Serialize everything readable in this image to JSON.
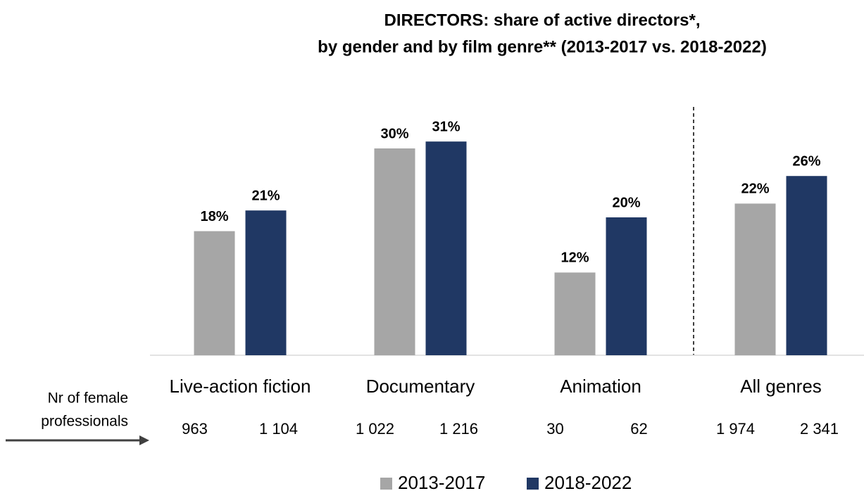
{
  "chart_data": {
    "type": "bar",
    "title": "DIRECTORS: share of active directors*,",
    "subtitle": "by gender and by film genre** (2013-2017 vs. 2018-2022)",
    "categories": [
      "Live-action fiction",
      "Documentary",
      "Animation",
      "All genres"
    ],
    "series": [
      {
        "name": "2013-2017",
        "color": "#a6a6a6",
        "values": [
          18,
          30,
          12,
          22
        ],
        "value_labels": [
          "18%",
          "30%",
          "12%",
          "22%"
        ],
        "counts": [
          "963",
          "1 022",
          "30",
          "1 974"
        ]
      },
      {
        "name": "2018-2022",
        "color": "#203864",
        "values": [
          21,
          31,
          20,
          26
        ],
        "value_labels": [
          "21%",
          "31%",
          "20%",
          "26%"
        ],
        "counts": [
          "1 104",
          "1 216",
          "62",
          "2 341"
        ]
      }
    ],
    "counts_label": [
      "Nr of female",
      "professionals"
    ],
    "ylim": [
      0,
      35
    ]
  }
}
